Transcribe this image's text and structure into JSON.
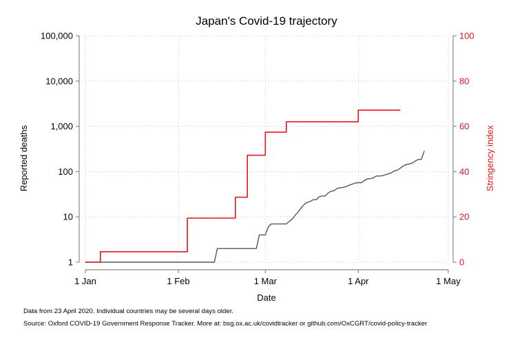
{
  "chart_data": {
    "type": "line",
    "title": "Japan's Covid-19 trajectory",
    "xlabel": "Date",
    "ylabel": "Reported deaths",
    "y2label": "Stringency index",
    "yscale": "log",
    "ylim": [
      1,
      100000
    ],
    "y2lim": [
      0,
      100
    ],
    "xlim": [
      "2020-01-01",
      "2020-05-01"
    ],
    "grid": true,
    "x_ticks": [
      {
        "date": "2020-01-01",
        "label": "1 Jan"
      },
      {
        "date": "2020-02-01",
        "label": "1 Feb"
      },
      {
        "date": "2020-03-01",
        "label": "1 Mar"
      },
      {
        "date": "2020-04-01",
        "label": "1 Apr"
      },
      {
        "date": "2020-05-01",
        "label": "1 May"
      }
    ],
    "y_ticks": [
      {
        "value": 1,
        "label": "1"
      },
      {
        "value": 10,
        "label": "10"
      },
      {
        "value": 100,
        "label": "100"
      },
      {
        "value": 1000,
        "label": "1,000"
      },
      {
        "value": 10000,
        "label": "10,000"
      },
      {
        "value": 100000,
        "label": "100,000"
      }
    ],
    "y2_ticks": [
      {
        "value": 0,
        "label": "0"
      },
      {
        "value": 20,
        "label": "20"
      },
      {
        "value": 40,
        "label": "40"
      },
      {
        "value": 60,
        "label": "60"
      },
      {
        "value": 80,
        "label": "80"
      },
      {
        "value": 100,
        "label": "100"
      }
    ],
    "series": [
      {
        "axis": "left",
        "color": "#555555",
        "points": [
          [
            "2020-01-01",
            1
          ],
          [
            "2020-02-13",
            1
          ],
          [
            "2020-02-14",
            2
          ],
          [
            "2020-02-27",
            2
          ],
          [
            "2020-02-28",
            4
          ],
          [
            "2020-03-01",
            4
          ],
          [
            "2020-03-02",
            6
          ],
          [
            "2020-03-03",
            7
          ],
          [
            "2020-03-08",
            7
          ],
          [
            "2020-03-09",
            8
          ],
          [
            "2020-03-10",
            9
          ],
          [
            "2020-03-11",
            11
          ],
          [
            "2020-03-12",
            13
          ],
          [
            "2020-03-13",
            16
          ],
          [
            "2020-03-14",
            19
          ],
          [
            "2020-03-15",
            21
          ],
          [
            "2020-03-16",
            22
          ],
          [
            "2020-03-17",
            24
          ],
          [
            "2020-03-18",
            24
          ],
          [
            "2020-03-19",
            28
          ],
          [
            "2020-03-20",
            29
          ],
          [
            "2020-03-21",
            29
          ],
          [
            "2020-03-22",
            34
          ],
          [
            "2020-03-23",
            37
          ],
          [
            "2020-03-24",
            38
          ],
          [
            "2020-03-25",
            43
          ],
          [
            "2020-03-26",
            44
          ],
          [
            "2020-03-27",
            45
          ],
          [
            "2020-03-28",
            47
          ],
          [
            "2020-03-29",
            50
          ],
          [
            "2020-03-30",
            53
          ],
          [
            "2020-03-31",
            56
          ],
          [
            "2020-04-01",
            57
          ],
          [
            "2020-04-02",
            57
          ],
          [
            "2020-04-03",
            63
          ],
          [
            "2020-04-04",
            69
          ],
          [
            "2020-04-05",
            70
          ],
          [
            "2020-04-06",
            73
          ],
          [
            "2020-04-07",
            80
          ],
          [
            "2020-04-08",
            80
          ],
          [
            "2020-04-09",
            81
          ],
          [
            "2020-04-10",
            85
          ],
          [
            "2020-04-11",
            89
          ],
          [
            "2020-04-12",
            94
          ],
          [
            "2020-04-13",
            104
          ],
          [
            "2020-04-14",
            108
          ],
          [
            "2020-04-15",
            119
          ],
          [
            "2020-04-16",
            133
          ],
          [
            "2020-04-17",
            144
          ],
          [
            "2020-04-18",
            148
          ],
          [
            "2020-04-19",
            154
          ],
          [
            "2020-04-20",
            171
          ],
          [
            "2020-04-21",
            186
          ],
          [
            "2020-04-22",
            186
          ],
          [
            "2020-04-23",
            287
          ]
        ]
      },
      {
        "axis": "right",
        "color": "#e8151b",
        "step": true,
        "points": [
          [
            "2020-01-01",
            0
          ],
          [
            "2020-01-06",
            0
          ],
          [
            "2020-01-06",
            4.63
          ],
          [
            "2020-02-04",
            4.63
          ],
          [
            "2020-02-04",
            19.44
          ],
          [
            "2020-02-20",
            19.44
          ],
          [
            "2020-02-20",
            28.7
          ],
          [
            "2020-02-24",
            28.7
          ],
          [
            "2020-02-24",
            47.22
          ],
          [
            "2020-03-01",
            47.22
          ],
          [
            "2020-03-01",
            57.41
          ],
          [
            "2020-03-08",
            57.41
          ],
          [
            "2020-03-08",
            62.04
          ],
          [
            "2020-04-01",
            62.04
          ],
          [
            "2020-04-01",
            67.13
          ],
          [
            "2020-04-15",
            67.13
          ]
        ]
      }
    ]
  },
  "notes": {
    "line1": "Data from 23 April 2020. Individual countries may be several days older.",
    "line2": "Source: Oxford COVID-19 Government Response Tracker. More at: bsg.ox.ac.uk/covidtracker or github.com/OxCGRT/covid-policy-tracker"
  }
}
